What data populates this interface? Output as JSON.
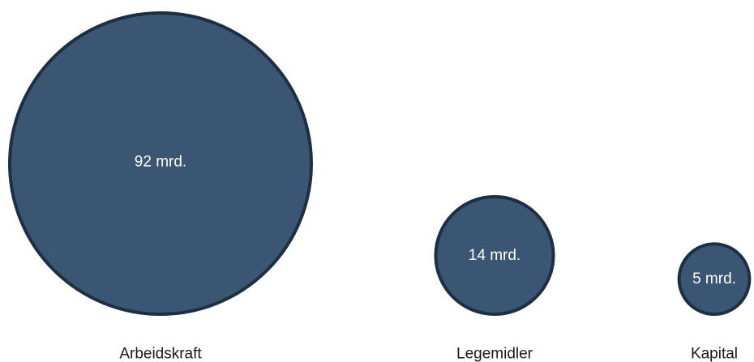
{
  "colors": {
    "bubble_fill": "#3a5673",
    "bubble_stroke": "#1d2f43",
    "label_text": "#ffffff",
    "category_text": "#1a1a1a"
  },
  "chart_data": {
    "type": "bubble",
    "title": "",
    "categories": [
      "Arbeidskraft",
      "Legemidler",
      "Kapital"
    ],
    "values": [
      92,
      14,
      5
    ],
    "unit": "mrd.",
    "data_labels": [
      "92 mrd.",
      "14 mrd.",
      "5 mrd."
    ]
  }
}
